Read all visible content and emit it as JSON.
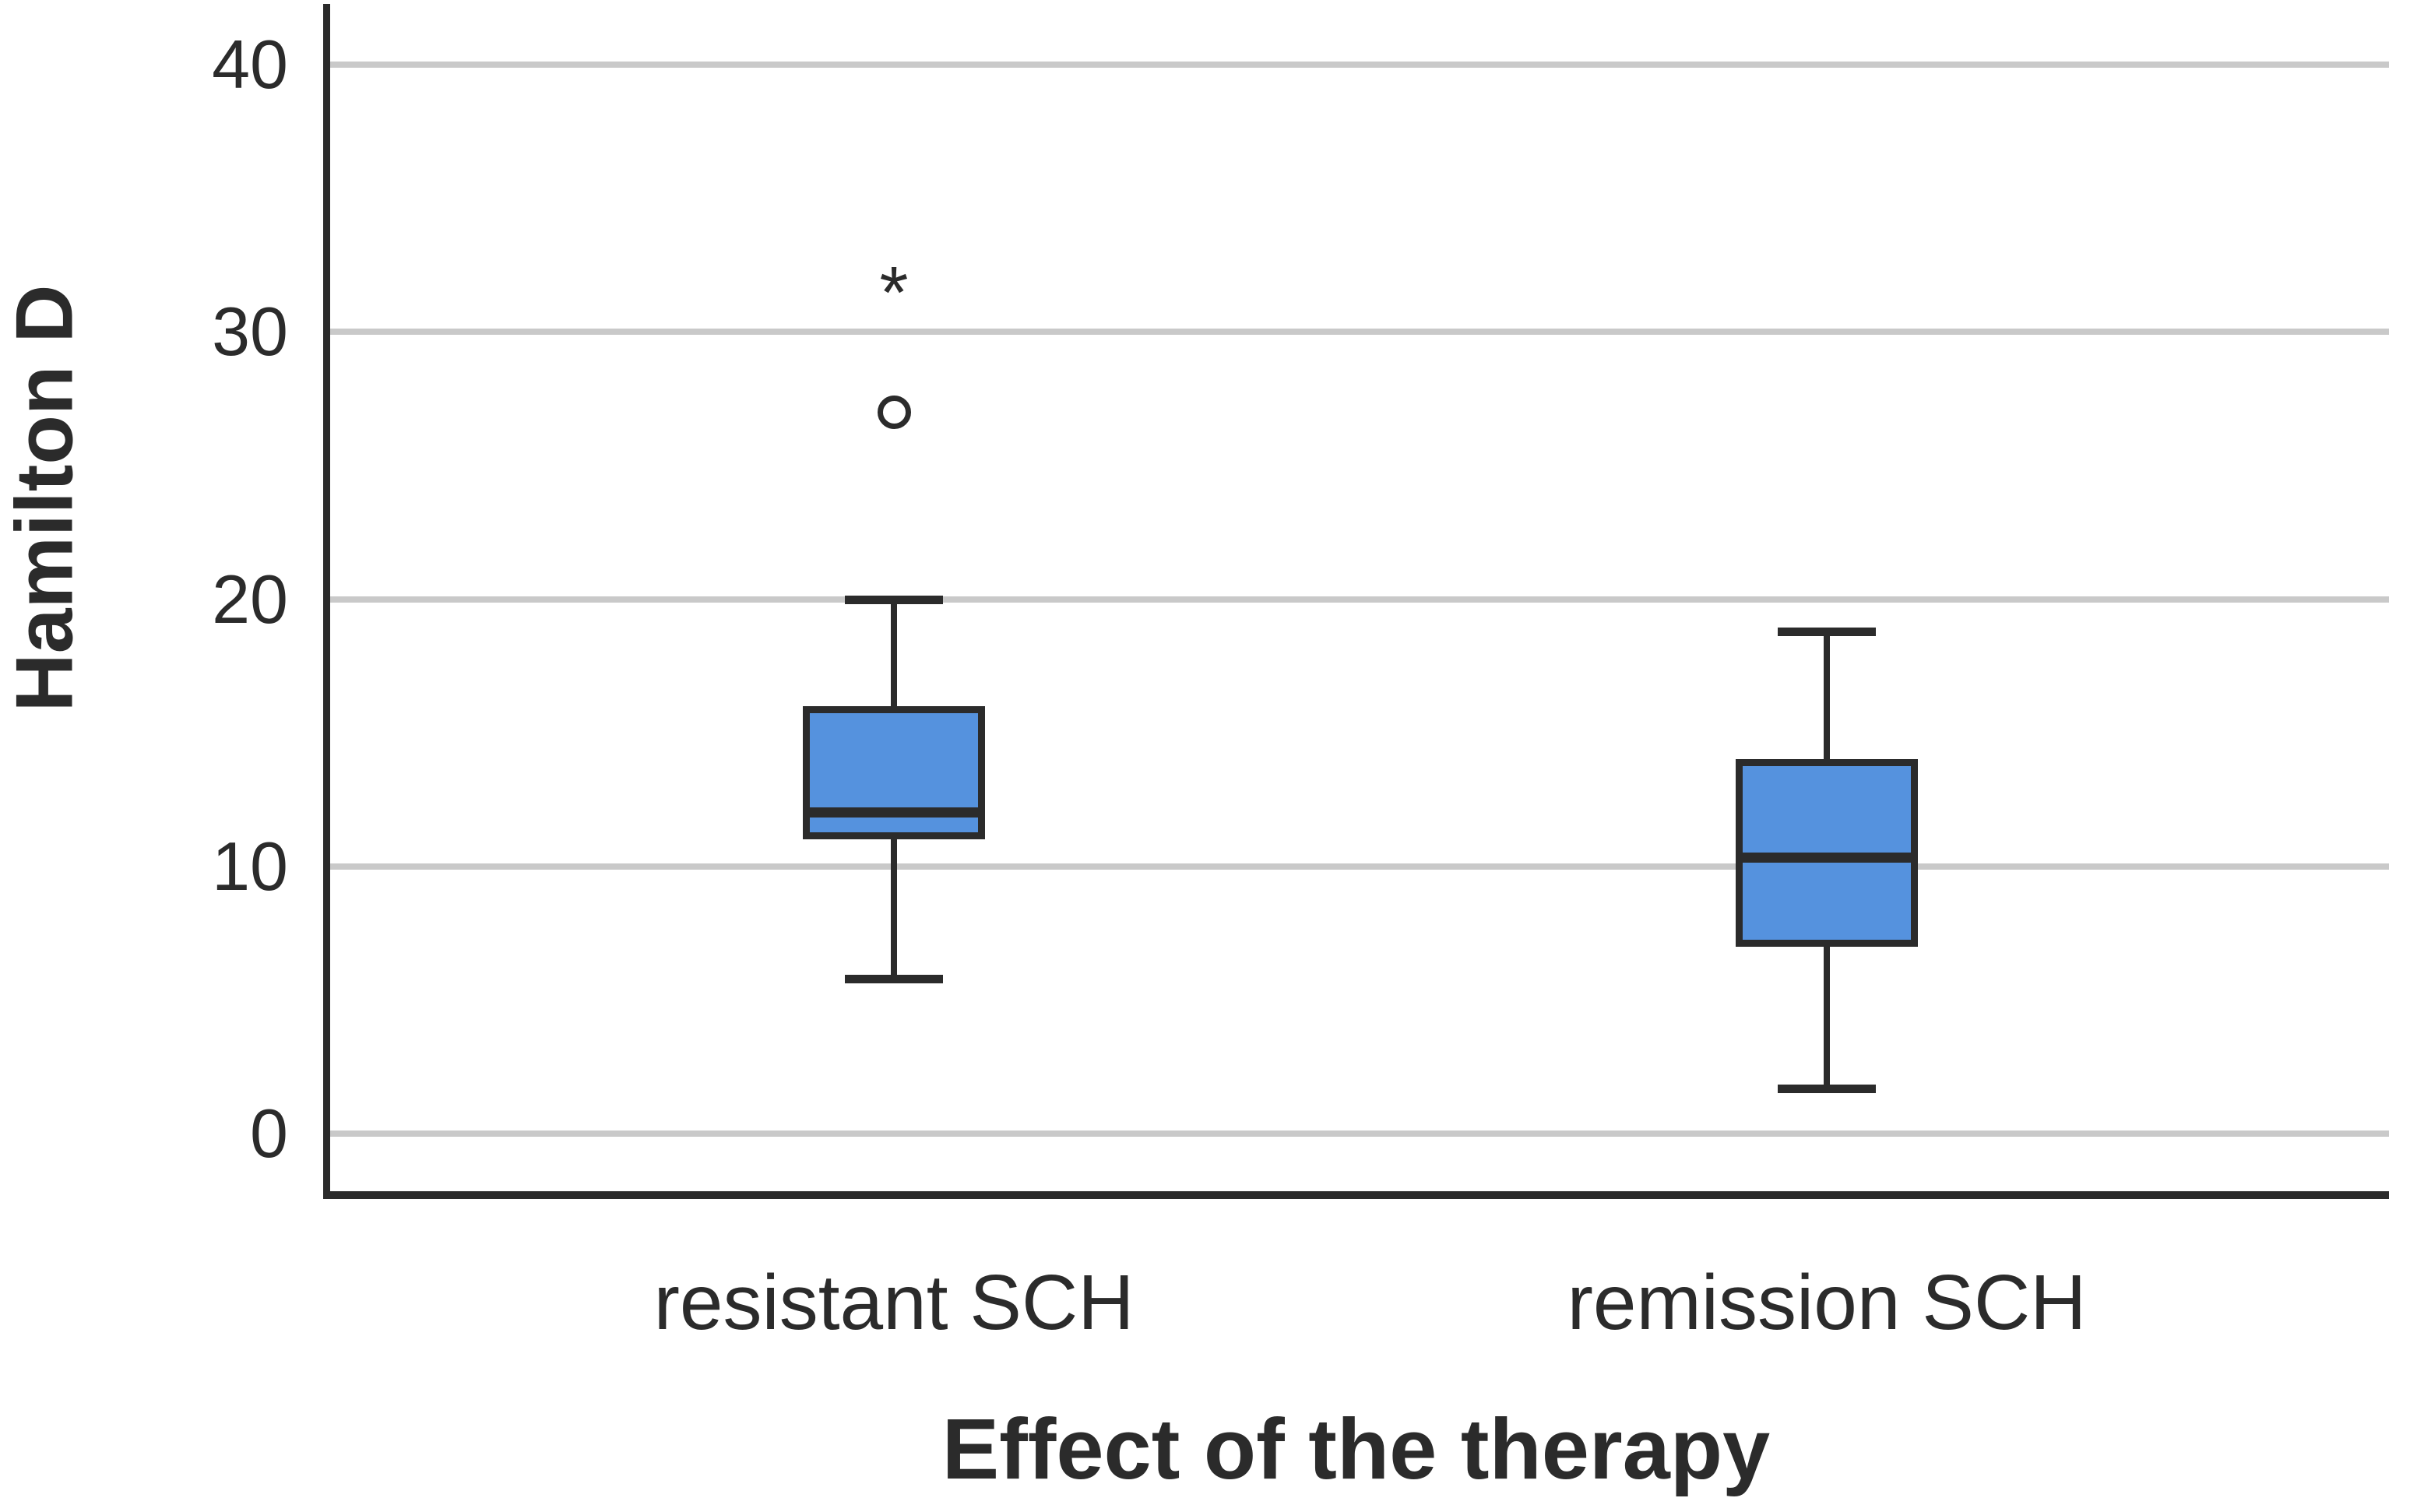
{
  "figure": {
    "background": "#ffffff"
  },
  "chart_data": {
    "type": "box",
    "title": "",
    "xlabel": "Effect of the therapy",
    "ylabel": "Hamilton D",
    "categories": [
      "resistant SCH",
      "remission SCH"
    ],
    "ylim": [
      0,
      42.5
    ],
    "yticks": [
      0,
      10,
      20,
      30,
      40
    ],
    "grid": "horizontal",
    "legend": "none",
    "series": [
      {
        "name": "resistant SCH",
        "whisker_low": 5.8,
        "q1": 11,
        "median": 12,
        "q3": 16,
        "whisker_high": 20,
        "outliers": [
          {
            "value": 27,
            "marker": "circle"
          },
          {
            "value": 32,
            "marker": "asterisk"
          }
        ]
      },
      {
        "name": "remission SCH",
        "whisker_low": 1.7,
        "q1": 7,
        "median": 10.3,
        "q3": 14,
        "whisker_high": 18.8,
        "outliers": []
      }
    ],
    "colors": {
      "box_fill": "#5592de",
      "box_border": "#2b2b2b",
      "median": "#2b2b2b",
      "whisker": "#2b2b2b",
      "gridline": "#c9c9c9",
      "axis": "#2b2b2b",
      "text": "#2b2b2b",
      "background": "#ffffff"
    },
    "outlier_glyphs": {
      "circle": "○",
      "asterisk": "*"
    }
  }
}
